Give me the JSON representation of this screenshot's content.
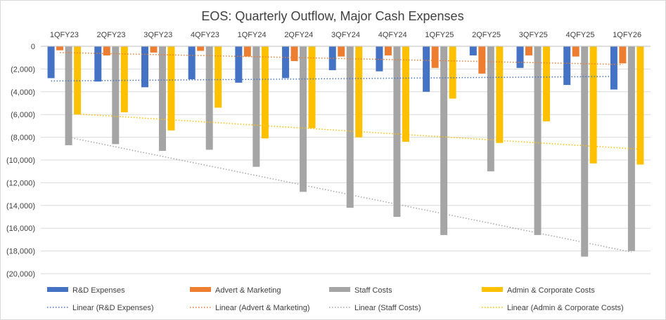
{
  "chart_data": {
    "type": "bar",
    "title": "EOS: Quarterly Outflow, Major Cash Expenses",
    "categories": [
      "1QFY23",
      "2QFY23",
      "3QFY23",
      "4QFY23",
      "1QFY24",
      "2QFY24",
      "3QFY24",
      "4QFY24",
      "1QFY25",
      "2QFY25",
      "3QFY25",
      "4QFY25",
      "1QFY26"
    ],
    "ylim": [
      -20000,
      0
    ],
    "ytick_step": 2000,
    "ytick_labels": [
      "0",
      "(2,000)",
      "(4,000)",
      "(6,000)",
      "(8,000)",
      "(10,000)",
      "(12,000)",
      "(14,000)",
      "(16,000)",
      "(18,000)",
      "(20,000)"
    ],
    "grid": true,
    "x_axis_position": "top",
    "legend_position": "bottom",
    "series": [
      {
        "name": "R&D Expenses",
        "color": "#4472C4",
        "values": [
          -2800,
          -3100,
          -3600,
          -2900,
          -3200,
          -2800,
          -2100,
          -2200,
          -4000,
          -800,
          -1900,
          -3400,
          -3800
        ]
      },
      {
        "name": "Advert & Marketing",
        "color": "#ED7D31",
        "values": [
          -350,
          -800,
          -550,
          -400,
          -900,
          -1300,
          -900,
          -800,
          -1900,
          -2400,
          -800,
          -900,
          -1500
        ]
      },
      {
        "name": "Staff Costs",
        "color": "#A5A5A5",
        "values": [
          -8700,
          -8600,
          -9200,
          -9100,
          -10600,
          -12800,
          -14200,
          -15000,
          -16600,
          -11000,
          -16600,
          -18500,
          -18000
        ]
      },
      {
        "name": "Admin & Corporate Costs",
        "color": "#FFC000",
        "values": [
          -6000,
          -5800,
          -7400,
          -5400,
          -8100,
          -7200,
          -8000,
          -8400,
          -4600,
          -8500,
          -6600,
          -10300,
          -10400
        ]
      }
    ],
    "trendlines": [
      {
        "name": "Linear (R&D Expenses)",
        "color": "#4472C4",
        "start": -3050,
        "end": -2650
      },
      {
        "name": "Linear (Advert & Marketing)",
        "color": "#ED7D31",
        "start": -550,
        "end": -1600
      },
      {
        "name": "Linear (Staff Costs)",
        "color": "#A5A5A5",
        "start": -8000,
        "end": -18100
      },
      {
        "name": "Linear (Admin & Corporate Costs)",
        "color": "#FFC000",
        "start": -5950,
        "end": -9050
      }
    ]
  }
}
